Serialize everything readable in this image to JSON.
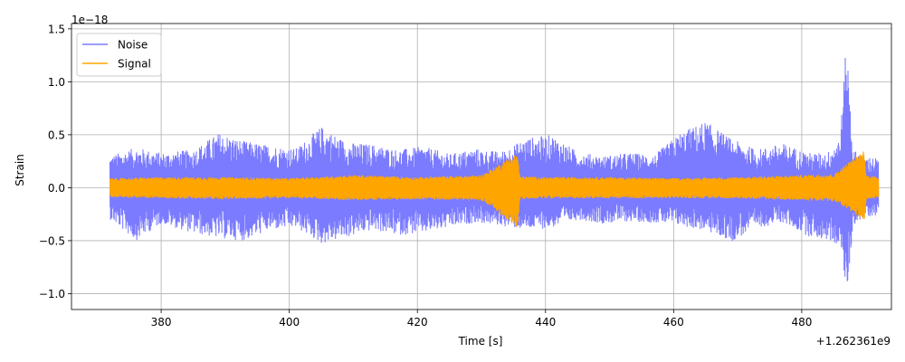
{
  "chart_data": {
    "type": "line",
    "title": "",
    "xlabel": "Time [s]",
    "ylabel": "Strain",
    "x_offset_label": "+1.262361e9",
    "y_multiplier_label": "1e−18",
    "xlim": [
      366,
      494
    ],
    "ylim": [
      -1.15,
      1.55
    ],
    "x_ticks": [
      380,
      400,
      420,
      440,
      460,
      480
    ],
    "x_tick_labels": [
      "380",
      "400",
      "420",
      "440",
      "460",
      "480"
    ],
    "y_ticks": [
      -1.0,
      -0.5,
      0.0,
      0.5,
      1.0,
      1.5
    ],
    "y_tick_labels": [
      "−1.0",
      "−0.5",
      "0.0",
      "0.5",
      "1.0",
      "1.5"
    ],
    "grid": true,
    "legend_position": "top-left",
    "series": [
      {
        "name": "Noise",
        "color": "#7b7bff",
        "x_range": [
          372,
          492
        ],
        "x": [
          372,
          376,
          380,
          385,
          389,
          393,
          397,
          401,
          405,
          409,
          413,
          417,
          421,
          425,
          429,
          433,
          437,
          441,
          445,
          449,
          453,
          457,
          461,
          465,
          469,
          473,
          477,
          481,
          484,
          486,
          487,
          488,
          490,
          492
        ],
        "upper": [
          0.3,
          0.38,
          0.33,
          0.36,
          0.52,
          0.44,
          0.4,
          0.37,
          0.58,
          0.43,
          0.41,
          0.36,
          0.39,
          0.32,
          0.37,
          0.34,
          0.47,
          0.5,
          0.34,
          0.3,
          0.33,
          0.31,
          0.52,
          0.63,
          0.46,
          0.36,
          0.42,
          0.33,
          0.33,
          0.5,
          1.42,
          0.36,
          0.3,
          0.28
        ],
        "lower": [
          -0.3,
          -0.5,
          -0.34,
          -0.43,
          -0.48,
          -0.5,
          -0.4,
          -0.38,
          -0.53,
          -0.47,
          -0.4,
          -0.45,
          -0.43,
          -0.38,
          -0.33,
          -0.36,
          -0.4,
          -0.38,
          -0.3,
          -0.34,
          -0.32,
          -0.33,
          -0.36,
          -0.41,
          -0.51,
          -0.38,
          -0.33,
          -0.46,
          -0.5,
          -0.55,
          -1.03,
          -0.35,
          -0.28,
          -0.26
        ]
      },
      {
        "name": "Signal",
        "color": "#ffa500",
        "x_range": [
          372,
          492
        ],
        "x": [
          372,
          380,
          390,
          400,
          410,
          420,
          430,
          435.6,
          436,
          440,
          450,
          460,
          470,
          480,
          485,
          489.8,
          490,
          492
        ],
        "upper": [
          0.09,
          0.1,
          0.1,
          0.09,
          0.12,
          0.1,
          0.12,
          0.33,
          0.11,
          0.1,
          0.1,
          0.09,
          0.1,
          0.12,
          0.13,
          0.36,
          0.12,
          0.1
        ],
        "lower": [
          -0.09,
          -0.1,
          -0.11,
          -0.1,
          -0.12,
          -0.11,
          -0.12,
          -0.38,
          -0.11,
          -0.1,
          -0.1,
          -0.1,
          -0.1,
          -0.12,
          -0.13,
          -0.31,
          -0.12,
          -0.1
        ]
      }
    ]
  }
}
